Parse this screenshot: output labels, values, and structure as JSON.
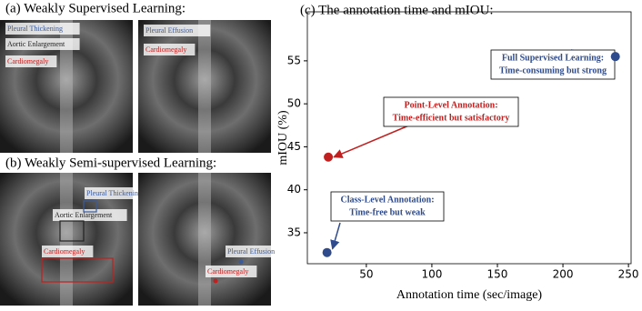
{
  "panels": [
    {
      "title": "(a) Weakly Supervised Learning:",
      "images": [
        {
          "labels": [
            {
              "text": "Pleural Thickening",
              "color": "#3b5a9a"
            },
            {
              "text": "Aortic Enlargement",
              "color": "#222222"
            },
            {
              "text": "Cardiomegaly",
              "color": "#c0201f"
            }
          ]
        },
        {
          "labels": [
            {
              "text": "Pleural Effusion",
              "color": "#3b5a9a"
            },
            {
              "text": "Cardiomegaly",
              "color": "#c0201f"
            }
          ]
        }
      ]
    },
    {
      "title": "(b) Weakly Semi-supervised Learning:",
      "images": [
        {
          "labels": [
            {
              "text": "Pleural Thickening",
              "color": "#3b5a9a"
            },
            {
              "text": "Aortic Enlargement",
              "color": "#222222"
            },
            {
              "text": "Cardiomegaly",
              "color": "#c0201f"
            }
          ]
        },
        {
          "labels": [
            {
              "text": "Pleural Effusion",
              "color": "#3b5a9a"
            },
            {
              "text": "Cardiomegaly",
              "color": "#c0201f"
            }
          ]
        }
      ]
    }
  ],
  "chart_data": {
    "type": "scatter",
    "title": "(c) The annotation time and mIOU:",
    "x_label": "Annotation time (sec/image)",
    "y_label": "mIOU (%)",
    "x": [
      20,
      21,
      240
    ],
    "values": [
      32.7,
      43.8,
      55.5
    ],
    "colors": [
      "#2f4b8c",
      "#c0201f",
      "#2f4b8c"
    ],
    "xlim": [
      5,
      252
    ],
    "ylim": [
      31.4,
      60.7
    ],
    "xticks": [
      50,
      100,
      150,
      200,
      250
    ],
    "yticks": [
      35,
      40,
      45,
      50,
      55
    ],
    "annotations": [
      {
        "lines": [
          "Class-Level Annotation:",
          "Time-free but weak"
        ],
        "color": "#2f4b8c"
      },
      {
        "lines": [
          "Point-Level Annotation:",
          "Time-efficient but satisfactory"
        ],
        "color": "#c0201f"
      },
      {
        "lines": [
          "Full Supervised Learning:",
          "Time-consuming but strong"
        ],
        "color": "#2f4b8c"
      }
    ]
  }
}
